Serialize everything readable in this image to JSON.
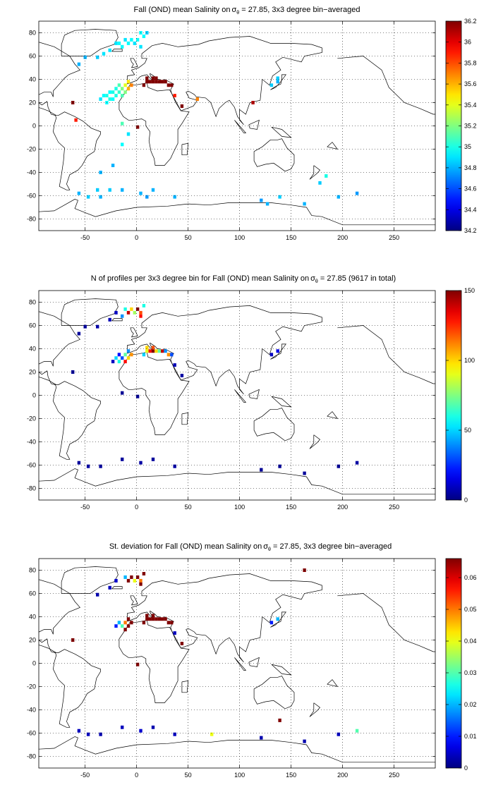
{
  "colors": {
    "land_outline": "#000000",
    "grid": "#000000",
    "cell_high": "#800000",
    "colormap": "jet"
  },
  "chart_data": [
    {
      "type": "heatmap",
      "title": "Fall (OND) mean Salinity on σθ = 27.85, 3x3 degree bin−averaged",
      "title_parts": {
        "pre": "Fall (OND) mean Salinity on",
        "sigma": "σ",
        "theta": "θ",
        "post": " = 27.85, 3x3 degree bin−averaged"
      },
      "x_ticks": [
        -50,
        0,
        50,
        100,
        150,
        200,
        250
      ],
      "y_ticks": [
        80,
        60,
        40,
        20,
        0,
        -20,
        -40,
        -60,
        -80
      ],
      "xlim": [
        -95,
        290
      ],
      "ylim": [
        -90,
        90
      ],
      "grid": true,
      "colorbar": {
        "ticks": [
          "36.2",
          "36",
          "35.8",
          "35.6",
          "35.4",
          "35.2",
          "35",
          "34.8",
          "34.6",
          "34.4",
          "34.2"
        ],
        "min": 34.2,
        "max": 36.2
      },
      "cells": [
        [
          10,
          38,
          36.3
        ],
        [
          13,
          38,
          36.3
        ],
        [
          16,
          38,
          36.3
        ],
        [
          19,
          38,
          36.3
        ],
        [
          22,
          38,
          36.3
        ],
        [
          25,
          38,
          36.3
        ],
        [
          28,
          38,
          36.3
        ],
        [
          31,
          35,
          36.3
        ],
        [
          34,
          35,
          36.3
        ],
        [
          7,
          35,
          36.3
        ],
        [
          10,
          41,
          36.2
        ],
        [
          16,
          41,
          36.2
        ],
        [
          19,
          41,
          36.2
        ],
        [
          -5,
          35,
          35.7
        ],
        [
          -8,
          38,
          35.5
        ],
        [
          -8,
          32,
          35.6
        ],
        [
          -11,
          35,
          35.4
        ],
        [
          -14,
          32,
          35.2
        ],
        [
          -17,
          35,
          35.1
        ],
        [
          -20,
          32,
          35.0
        ],
        [
          -23,
          29,
          35.0
        ],
        [
          -26,
          29,
          34.95
        ],
        [
          -29,
          26,
          35.0
        ],
        [
          -32,
          26,
          34.95
        ],
        [
          -35,
          23,
          34.9
        ],
        [
          -26,
          23,
          35.0
        ],
        [
          -20,
          26,
          35.0
        ],
        [
          -14,
          26,
          35.1
        ],
        [
          -11,
          29,
          35.2
        ],
        [
          -17,
          29,
          35.05
        ],
        [
          -23,
          23,
          34.95
        ],
        [
          -29,
          20,
          34.95
        ],
        [
          -20,
          71,
          34.9
        ],
        [
          -17,
          71,
          34.95
        ],
        [
          -14,
          68,
          34.95
        ],
        [
          -8,
          71,
          34.95
        ],
        [
          -5,
          74,
          34.95
        ],
        [
          1,
          74,
          34.95
        ],
        [
          7,
          77,
          34.95
        ],
        [
          4,
          80,
          34.95
        ],
        [
          10,
          80,
          34.85
        ],
        [
          -11,
          74,
          34.9
        ],
        [
          -2,
          71,
          34.9
        ],
        [
          4,
          68,
          34.9
        ],
        [
          -26,
          65,
          34.9
        ],
        [
          -32,
          62,
          34.9
        ],
        [
          -38,
          59,
          34.85
        ],
        [
          -50,
          59,
          34.8
        ],
        [
          -56,
          53,
          34.8
        ],
        [
          37,
          26,
          35.9
        ],
        [
          44,
          17,
          36.3
        ],
        [
          59,
          23,
          35.7
        ],
        [
          -62,
          20,
          36.3
        ],
        [
          -59,
          5,
          35.9
        ],
        [
          -14,
          2,
          35.1
        ],
        [
          1,
          -1,
          36.2
        ],
        [
          -8,
          -7,
          34.9
        ],
        [
          -14,
          -16,
          34.95
        ],
        [
          113,
          20,
          36.1
        ],
        [
          131,
          35,
          34.85
        ],
        [
          137,
          38,
          34.8
        ],
        [
          137,
          41,
          34.85
        ],
        [
          -23,
          -34,
          34.8
        ],
        [
          -35,
          -40,
          34.8
        ],
        [
          -56,
          -58,
          34.8
        ],
        [
          -47,
          -61,
          34.85
        ],
        [
          -38,
          -55,
          34.85
        ],
        [
          -35,
          -61,
          34.8
        ],
        [
          -26,
          -55,
          34.85
        ],
        [
          -14,
          -55,
          34.8
        ],
        [
          4,
          -58,
          34.8
        ],
        [
          10,
          -61,
          34.75
        ],
        [
          16,
          -55,
          34.8
        ],
        [
          37,
          -61,
          34.8
        ],
        [
          121,
          -64,
          34.75
        ],
        [
          127,
          -67,
          34.8
        ],
        [
          139,
          -61,
          34.85
        ],
        [
          163,
          -67,
          34.8
        ],
        [
          178,
          -49,
          34.85
        ],
        [
          184,
          -43,
          35.0
        ],
        [
          196,
          -61,
          34.8
        ],
        [
          214,
          -58,
          34.75
        ]
      ]
    },
    {
      "type": "heatmap",
      "title": "N of profiles per 3x3 degree bin for Fall (OND) mean Salinity on σθ = 27.85 (9617 in total)",
      "title_parts": {
        "pre": "N of profiles per 3x3 degree bin for Fall (OND) mean Salinity on",
        "sigma": "σ",
        "theta": "θ",
        "post": " = 27.85 (9617 in total)"
      },
      "x_ticks": [
        -50,
        0,
        50,
        100,
        150,
        200,
        250
      ],
      "y_ticks": [
        80,
        60,
        40,
        20,
        0,
        -20,
        -40,
        -60,
        -80
      ],
      "xlim": [
        -95,
        290
      ],
      "ylim": [
        -90,
        90
      ],
      "grid": true,
      "colorbar": {
        "ticks": [
          "150",
          "100",
          "50",
          "0"
        ],
        "min": 0,
        "max": 150
      },
      "cells": [
        [
          10,
          38,
          90
        ],
        [
          13,
          38,
          130
        ],
        [
          16,
          38,
          150
        ],
        [
          19,
          38,
          100
        ],
        [
          22,
          38,
          70
        ],
        [
          25,
          38,
          140
        ],
        [
          28,
          38,
          40
        ],
        [
          31,
          35,
          110
        ],
        [
          34,
          35,
          30
        ],
        [
          7,
          35,
          50
        ],
        [
          10,
          41,
          100
        ],
        [
          16,
          41,
          120
        ],
        [
          -5,
          35,
          110
        ],
        [
          -8,
          38,
          40
        ],
        [
          -11,
          35,
          70
        ],
        [
          -14,
          32,
          30
        ],
        [
          -17,
          35,
          20
        ],
        [
          -20,
          32,
          50
        ],
        [
          -23,
          29,
          10
        ],
        [
          -11,
          29,
          130
        ],
        [
          -17,
          29,
          60
        ],
        [
          -8,
          32,
          100
        ],
        [
          -8,
          71,
          140
        ],
        [
          -5,
          74,
          100
        ],
        [
          1,
          74,
          150
        ],
        [
          4,
          71,
          120
        ],
        [
          7,
          77,
          60
        ],
        [
          -2,
          71,
          80
        ],
        [
          -14,
          68,
          40
        ],
        [
          4,
          68,
          130
        ],
        [
          -11,
          74,
          60
        ],
        [
          -20,
          71,
          10
        ],
        [
          -26,
          65,
          8
        ],
        [
          -38,
          59,
          6
        ],
        [
          -50,
          59,
          5
        ],
        [
          -56,
          53,
          4
        ],
        [
          37,
          26,
          8
        ],
        [
          44,
          17,
          5
        ],
        [
          131,
          35,
          10
        ],
        [
          137,
          38,
          15
        ],
        [
          -62,
          20,
          3
        ],
        [
          -14,
          2,
          3
        ],
        [
          1,
          -1,
          3
        ],
        [
          -56,
          -58,
          4
        ],
        [
          -47,
          -61,
          5
        ],
        [
          -35,
          -61,
          4
        ],
        [
          -14,
          -55,
          4
        ],
        [
          4,
          -58,
          5
        ],
        [
          16,
          -55,
          4
        ],
        [
          37,
          -61,
          5
        ],
        [
          121,
          -64,
          3
        ],
        [
          139,
          -61,
          3
        ],
        [
          163,
          -67,
          4
        ],
        [
          196,
          -61,
          3
        ],
        [
          214,
          -58,
          5
        ]
      ]
    },
    {
      "type": "heatmap",
      "title": "St. deviation for Fall (OND) mean Salinity on σθ = 27.85, 3x3 degree bin−averaged",
      "title_parts": {
        "pre": "St. deviation for Fall (OND) mean Salinity on",
        "sigma": "σ",
        "theta": "θ",
        "post": " = 27.85, 3x3 degree bin−averaged"
      },
      "x_ticks": [
        -50,
        0,
        50,
        100,
        150,
        200,
        250
      ],
      "y_ticks": [
        80,
        60,
        40,
        20,
        0,
        -20,
        -40,
        -60,
        -80
      ],
      "xlim": [
        -95,
        290
      ],
      "ylim": [
        -90,
        90
      ],
      "grid": true,
      "colorbar": {
        "ticks": [
          "0.06",
          "0.05",
          "0.04",
          "0.03",
          "0.02",
          "0.01",
          "0"
        ],
        "min": 0,
        "max": 0.066
      },
      "cells": [
        [
          10,
          38,
          0.066
        ],
        [
          13,
          38,
          0.066
        ],
        [
          16,
          38,
          0.066
        ],
        [
          19,
          38,
          0.066
        ],
        [
          22,
          38,
          0.066
        ],
        [
          25,
          38,
          0.066
        ],
        [
          28,
          38,
          0.066
        ],
        [
          31,
          35,
          0.066
        ],
        [
          34,
          35,
          0.066
        ],
        [
          7,
          35,
          0.066
        ],
        [
          10,
          41,
          0.066
        ],
        [
          16,
          41,
          0.066
        ],
        [
          -5,
          35,
          0.066
        ],
        [
          -8,
          38,
          0.066
        ],
        [
          -11,
          35,
          0.05
        ],
        [
          -14,
          32,
          0.03
        ],
        [
          -17,
          35,
          0.02
        ],
        [
          -20,
          32,
          0.01
        ],
        [
          -11,
          29,
          0.066
        ],
        [
          -8,
          32,
          0.066
        ],
        [
          -8,
          71,
          0.066
        ],
        [
          -5,
          74,
          0.066
        ],
        [
          1,
          74,
          0.066
        ],
        [
          4,
          71,
          0.05
        ],
        [
          7,
          77,
          0.066
        ],
        [
          -2,
          71,
          0.04
        ],
        [
          4,
          68,
          0.066
        ],
        [
          -11,
          74,
          0.02
        ],
        [
          -20,
          71,
          0.005
        ],
        [
          -26,
          65,
          0.004
        ],
        [
          -38,
          59,
          0.003
        ],
        [
          44,
          17,
          0.066
        ],
        [
          37,
          26,
          0.004
        ],
        [
          131,
          35,
          0.01
        ],
        [
          137,
          38,
          0.02
        ],
        [
          1,
          -1,
          0.066
        ],
        [
          -62,
          20,
          0.066
        ],
        [
          163,
          80,
          0.066
        ],
        [
          -56,
          -58,
          0.004
        ],
        [
          -47,
          -61,
          0.004
        ],
        [
          -35,
          -61,
          0.003
        ],
        [
          -14,
          -55,
          0.004
        ],
        [
          4,
          -58,
          0.005
        ],
        [
          16,
          -55,
          0.003
        ],
        [
          37,
          -61,
          0.004
        ],
        [
          73,
          -61,
          0.04
        ],
        [
          121,
          -64,
          0.003
        ],
        [
          139,
          -49,
          0.066
        ],
        [
          163,
          -67,
          0.003
        ],
        [
          214,
          -58,
          0.03
        ],
        [
          196,
          -61,
          0.004
        ]
      ]
    }
  ]
}
